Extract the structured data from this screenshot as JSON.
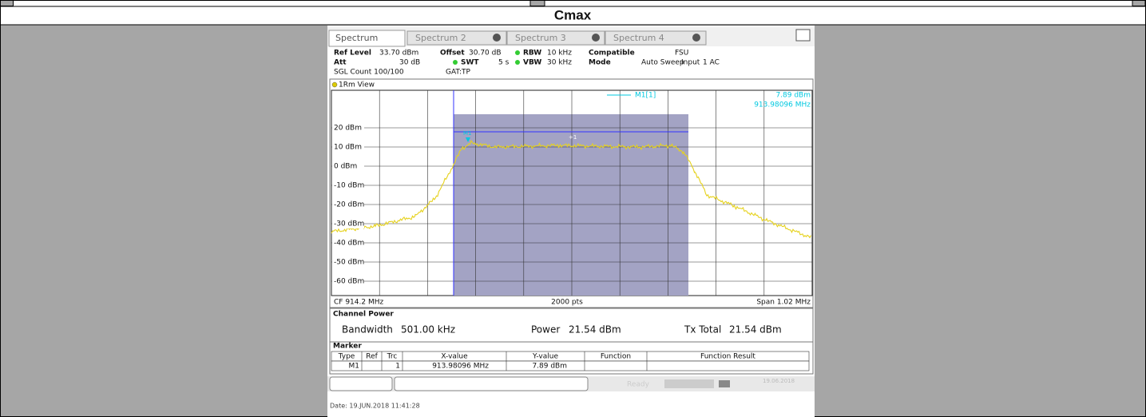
{
  "header": {
    "title": "Cmax"
  },
  "tabs": [
    "Spectrum",
    "Spectrum 2",
    "Spectrum 3",
    "Spectrum 4"
  ],
  "settings": {
    "row1": [
      "Ref Level",
      "33.70 dBm",
      "Offset",
      "30.70 dB",
      "RBW",
      "10 kHz",
      "Compatible",
      "FSU"
    ],
    "row2": [
      "Att",
      "30 dB",
      "SWT",
      "5 s",
      "VBW",
      "30 kHz",
      "Mode",
      "Auto Sweep",
      "Input",
      "1 AC"
    ],
    "row3": [
      "SGL Count 100/100",
      "GAT:TP"
    ]
  },
  "plot": {
    "view": "1Rm View",
    "marker_name": "M1[1]",
    "marker_level": "7.89 dBm",
    "marker_freq": "913.98096 MHz",
    "marker_tag": "M1",
    "channel_tag": "+1",
    "y_labels": [
      "20 dBm",
      "10 dBm",
      "0 dBm",
      "-10 dBm",
      "-20 dBm",
      "-30 dBm",
      "-40 dBm",
      "-50 dBm",
      "-60 dBm"
    ],
    "footer": [
      "CF 914.2 MHz",
      "2000 pts",
      "Span 1.02 MHz"
    ]
  },
  "channel_power": {
    "title": "Channel Power",
    "bandwidth_label": "Bandwidth",
    "bandwidth": "501.00 kHz",
    "power_label": "Power",
    "power": "21.54 dBm",
    "tx_label": "Tx Total",
    "tx": "21.54 dBm"
  },
  "marker_table": {
    "title": "Marker",
    "columns": [
      "Type",
      "Ref",
      "Trc",
      "X-value",
      "Y-value",
      "Function",
      "Function Result"
    ],
    "rows": [
      [
        "M1",
        "",
        "1",
        "913.98096 MHz",
        "7.89 dBm",
        "",
        ""
      ]
    ]
  },
  "status": {
    "state": "Ready",
    "date": "19.06.2018"
  },
  "date_line": "Date: 19.JUN.2018  11:41:28"
}
